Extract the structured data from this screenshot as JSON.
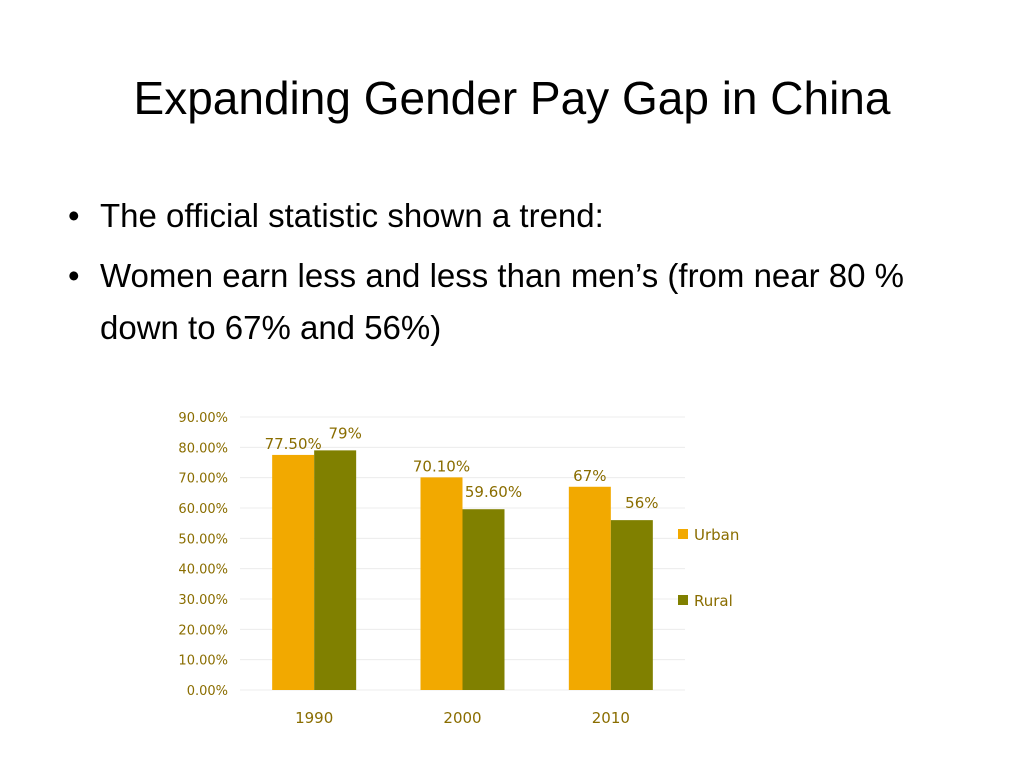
{
  "slide": {
    "title": "Expanding Gender Pay Gap in China",
    "bullets": [
      "The official statistic shown a trend:",
      "Women earn less and less than men’s (from near 80 % down to 67% and 56%)"
    ]
  },
  "chart_data": {
    "type": "bar",
    "title": "",
    "xlabel": "",
    "ylabel": "",
    "categories": [
      "1990",
      "2000",
      "2010"
    ],
    "ylim": [
      0,
      90
    ],
    "y_ticks": [
      "0.00%",
      "10.00%",
      "20.00%",
      "30.00%",
      "40.00%",
      "50.00%",
      "60.00%",
      "70.00%",
      "80.00%",
      "90.00%"
    ],
    "series": [
      {
        "name": "Urban",
        "color": "#f2a900",
        "values": [
          77.5,
          70.1,
          67
        ],
        "labels": [
          "77.50%",
          "70.10%",
          "67%"
        ]
      },
      {
        "name": "Rural",
        "color": "#808000",
        "values": [
          79,
          59.6,
          56
        ],
        "labels": [
          "79%",
          "59.60%",
          "56%"
        ]
      }
    ],
    "grid": true,
    "legend_position": "right"
  }
}
